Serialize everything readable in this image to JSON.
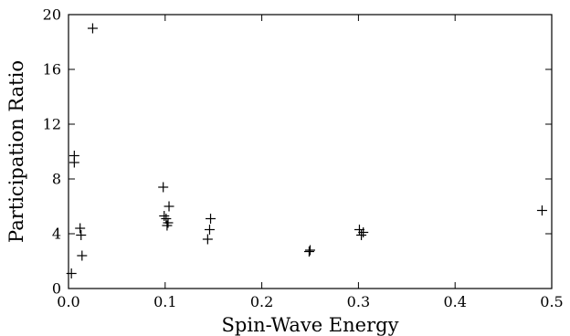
{
  "chart_data": {
    "type": "scatter",
    "title": "",
    "xlabel": "Spin-Wave Energy",
    "ylabel": "Participation Ratio",
    "xlim": [
      0,
      0.5
    ],
    "ylim": [
      0,
      20
    ],
    "xticks": [
      0,
      0.1,
      0.2,
      0.3,
      0.4,
      0.5
    ],
    "xtick_labels": [
      "0.0",
      "0.1",
      "0.2",
      "0.3",
      "0.4",
      "0.5"
    ],
    "yticks": [
      0,
      4,
      8,
      12,
      16,
      20
    ],
    "ytick_labels": [
      "0",
      "4",
      "8",
      "12",
      "16",
      "20"
    ],
    "marker": "plus",
    "grid": false,
    "legend": "none",
    "series": [
      {
        "x": [
          0.003,
          0.006,
          0.006,
          0.012,
          0.013,
          0.014,
          0.025,
          0.098,
          0.099,
          0.101,
          0.102,
          0.103,
          0.104,
          0.144,
          0.146,
          0.147,
          0.249,
          0.25,
          0.301,
          0.303,
          0.305,
          0.49
        ],
        "y": [
          1.1,
          9.7,
          9.2,
          4.4,
          3.9,
          2.4,
          19.0,
          7.4,
          5.3,
          5.1,
          4.6,
          4.8,
          6.0,
          3.6,
          4.3,
          5.1,
          2.7,
          2.8,
          4.3,
          3.9,
          4.1,
          5.7
        ]
      }
    ]
  }
}
